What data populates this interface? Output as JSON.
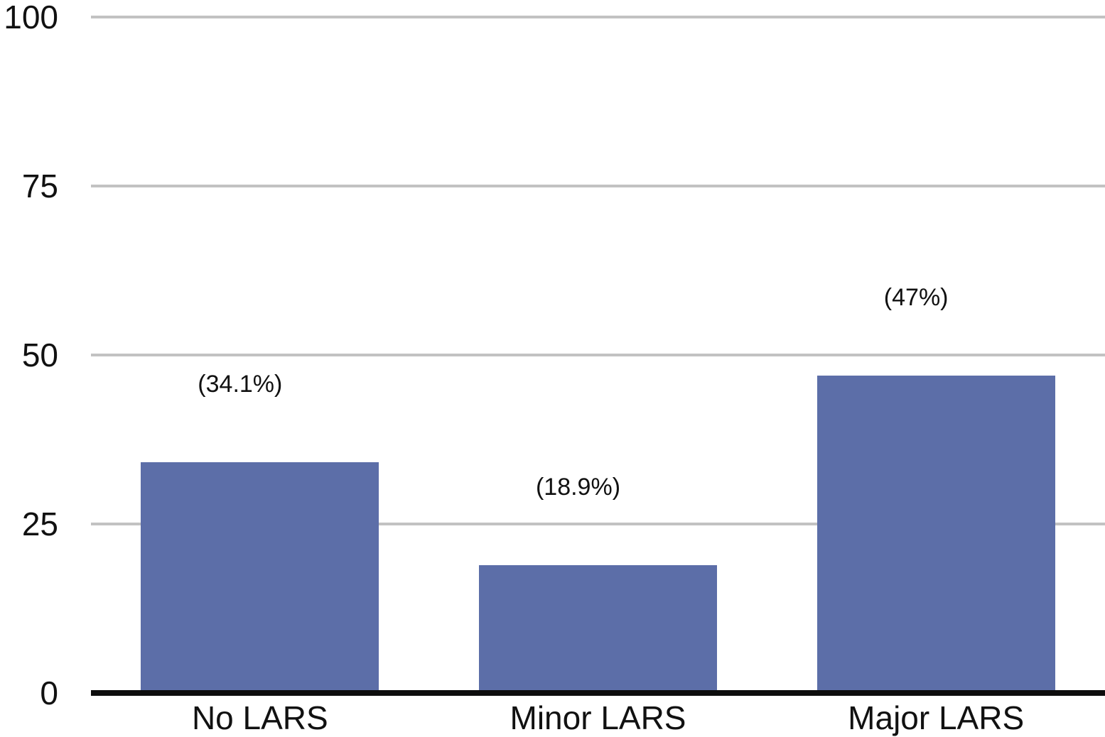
{
  "chart_data": {
    "type": "bar",
    "categories": [
      "No LARS",
      "Minor LARS",
      "Major LARS"
    ],
    "values": [
      34.1,
      18.9,
      47
    ],
    "data_labels": [
      "(34.1%)",
      "(18.9%)",
      "(47%)"
    ],
    "title": "",
    "xlabel": "",
    "ylabel": "",
    "ylim": [
      0,
      100
    ],
    "yticks": [
      0,
      25,
      50,
      75,
      100
    ],
    "grid": "horizontal-gridlines-at-yticks",
    "legend": "none",
    "colors": {
      "bar": "#5C6EA8",
      "gridline": "#C2C2C2",
      "axis": "#0D0D0D",
      "text": "#111111",
      "background": "#FFFFFF"
    }
  }
}
